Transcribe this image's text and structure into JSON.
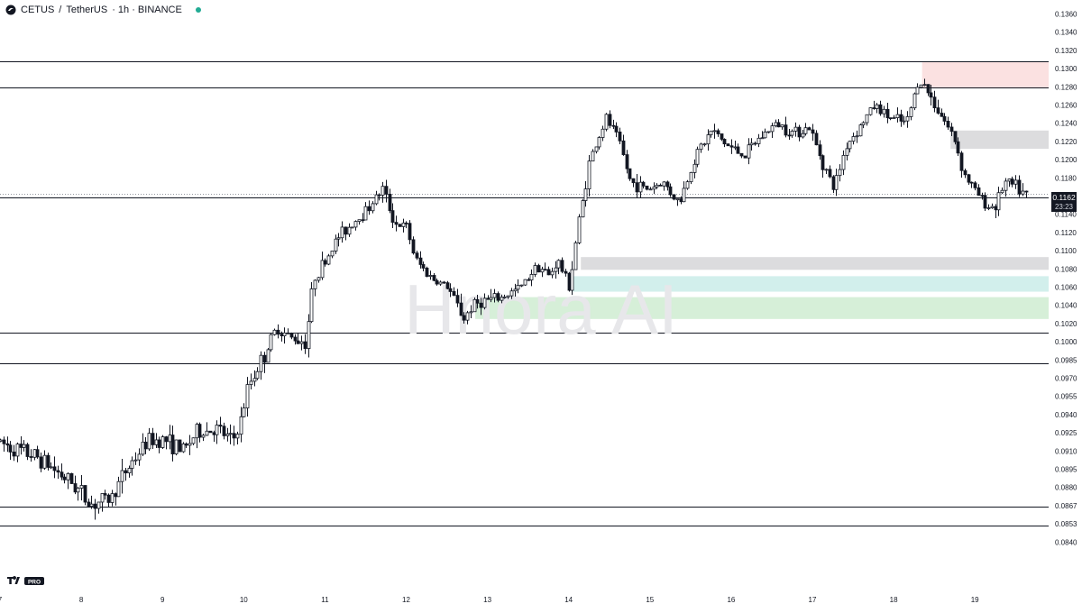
{
  "header": {
    "symbol": "CETUS",
    "separator": "/",
    "quote": "TetherUS",
    "meta": "· 1h · BINANCE",
    "status_color": "#22ab94"
  },
  "watermark": "Hnora AI",
  "branding": {
    "logo_text": "PRO"
  },
  "price_label": {
    "price": "0.1162",
    "countdown": "23:23"
  },
  "colors": {
    "candle": "#131722",
    "supply_zone": "#fbe1e1",
    "grey_zone": "#dcdcde",
    "teal_zone": "#d2efec",
    "green_zone": "#d6efd8",
    "axis_text": "#131722"
  },
  "chart_data": {
    "type": "candlestick",
    "timeframe": "1h",
    "x_tick_labels": [
      "7",
      "8",
      "9",
      "10",
      "11",
      "12",
      "13",
      "14",
      "15",
      "16",
      "17",
      "18",
      "19"
    ],
    "y_tick_labels": [
      "0.1360",
      "0.1340",
      "0.1320",
      "0.1300",
      "0.1280",
      "0.1260",
      "0.1240",
      "0.1220",
      "0.1200",
      "0.1180",
      "0.1160",
      "0.1140",
      "0.1120",
      "0.1100",
      "0.1080",
      "0.1060",
      "0.1040",
      "0.1020",
      "0.1000",
      "0.0985",
      "0.0970",
      "0.0955",
      "0.0940",
      "0.0925",
      "0.0910",
      "0.0895",
      "0.0880",
      "0.0867",
      "0.0853",
      "0.0840"
    ],
    "horizontal_levels": [
      0.1308,
      0.1279,
      0.1159,
      0.101,
      0.0982,
      0.0866,
      0.0852
    ],
    "zones": [
      {
        "kind": "supply",
        "from_day": 18.35,
        "to_day": 19.95,
        "low": 0.1279,
        "high": 0.1308
      },
      {
        "kind": "grey",
        "from_day": 18.7,
        "to_day": 19.95,
        "low": 0.1212,
        "high": 0.1232
      },
      {
        "kind": "grey",
        "from_day": 14.15,
        "to_day": 19.95,
        "low": 0.1079,
        "high": 0.1093
      },
      {
        "kind": "teal",
        "from_day": 14.05,
        "to_day": 19.95,
        "low": 0.1055,
        "high": 0.1072
      },
      {
        "kind": "green",
        "from_day": 12.85,
        "to_day": 19.95,
        "low": 0.1025,
        "high": 0.1049
      }
    ],
    "path_points": [
      [
        7.0,
        0.0918
      ],
      [
        7.2,
        0.0912
      ],
      [
        7.5,
        0.0905
      ],
      [
        7.7,
        0.0895
      ],
      [
        7.95,
        0.0882
      ],
      [
        8.15,
        0.0868
      ],
      [
        8.4,
        0.0872
      ],
      [
        8.6,
        0.0895
      ],
      [
        8.85,
        0.0918
      ],
      [
        9.05,
        0.092
      ],
      [
        9.3,
        0.091
      ],
      [
        9.45,
        0.0925
      ],
      [
        9.7,
        0.0928
      ],
      [
        9.9,
        0.0918
      ],
      [
        10.0,
        0.0935
      ],
      [
        10.1,
        0.0965
      ],
      [
        10.3,
        0.099
      ],
      [
        10.45,
        0.1015
      ],
      [
        10.6,
        0.1005
      ],
      [
        10.8,
        0.1
      ],
      [
        10.9,
        0.107
      ],
      [
        11.05,
        0.109
      ],
      [
        11.2,
        0.1115
      ],
      [
        11.35,
        0.1128
      ],
      [
        11.55,
        0.1145
      ],
      [
        11.75,
        0.1168
      ],
      [
        11.9,
        0.113
      ],
      [
        12.05,
        0.1125
      ],
      [
        12.15,
        0.109
      ],
      [
        12.35,
        0.107
      ],
      [
        12.55,
        0.106
      ],
      [
        12.75,
        0.1025
      ],
      [
        12.85,
        0.104
      ],
      [
        13.0,
        0.1045
      ],
      [
        13.2,
        0.1048
      ],
      [
        13.45,
        0.106
      ],
      [
        13.65,
        0.1085
      ],
      [
        13.8,
        0.1072
      ],
      [
        13.9,
        0.109
      ],
      [
        14.05,
        0.106
      ],
      [
        14.15,
        0.1125
      ],
      [
        14.3,
        0.12
      ],
      [
        14.5,
        0.1245
      ],
      [
        14.65,
        0.1222
      ],
      [
        14.8,
        0.1175
      ],
      [
        15.0,
        0.1168
      ],
      [
        15.2,
        0.1175
      ],
      [
        15.4,
        0.1152
      ],
      [
        15.6,
        0.1205
      ],
      [
        15.8,
        0.1232
      ],
      [
        16.0,
        0.1215
      ],
      [
        16.2,
        0.1205
      ],
      [
        16.4,
        0.1225
      ],
      [
        16.6,
        0.124
      ],
      [
        16.8,
        0.123
      ],
      [
        17.0,
        0.1235
      ],
      [
        17.15,
        0.12
      ],
      [
        17.3,
        0.1168
      ],
      [
        17.45,
        0.1215
      ],
      [
        17.65,
        0.124
      ],
      [
        17.8,
        0.126
      ],
      [
        18.0,
        0.1245
      ],
      [
        18.2,
        0.124
      ],
      [
        18.35,
        0.129
      ],
      [
        18.5,
        0.1268
      ],
      [
        18.65,
        0.1245
      ],
      [
        18.8,
        0.122
      ],
      [
        18.9,
        0.1185
      ],
      [
        19.05,
        0.1165
      ],
      [
        19.2,
        0.1148
      ],
      [
        19.3,
        0.115
      ],
      [
        19.4,
        0.1175
      ],
      [
        19.55,
        0.117
      ],
      [
        19.65,
        0.116
      ]
    ]
  }
}
